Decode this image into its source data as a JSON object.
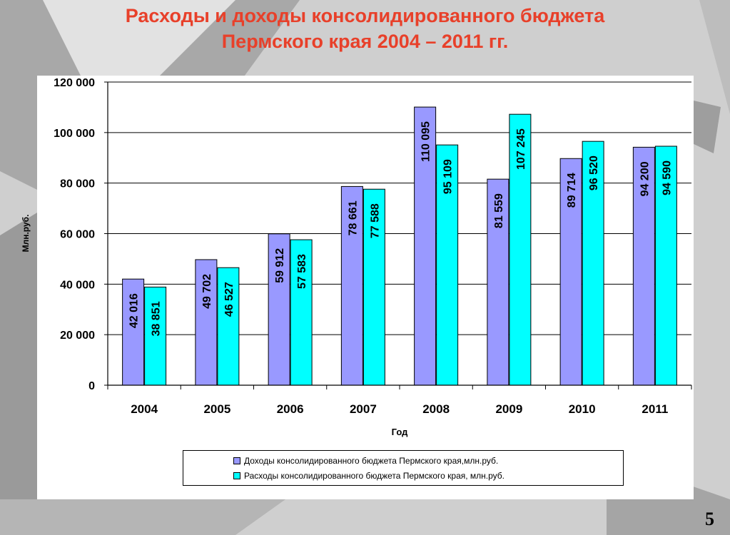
{
  "slide": {
    "title_line1": "Расходы и доходы консолидированного бюджета",
    "title_line2": "Пермского края  2004 – 2011 гг.",
    "page_number": "5",
    "title_color": "#e8402a"
  },
  "chart_data": {
    "type": "bar",
    "categories": [
      "2004",
      "2005",
      "2006",
      "2007",
      "2008",
      "2009",
      "2010",
      "2011"
    ],
    "series": [
      {
        "name": "Доходы консолидированного бюджета Пермского края,млн.руб.",
        "values": [
          42016,
          49702,
          59912,
          78661,
          110095,
          81559,
          89714,
          94200
        ],
        "labels": [
          "42 016",
          "49 702",
          "59 912",
          "78 661",
          "110 095",
          "81 559",
          "89 714",
          "94 200"
        ],
        "color": "#9999ff"
      },
      {
        "name": "Расходы консолидированного бюджета Пермского края, млн.руб.",
        "values": [
          38851,
          46527,
          57583,
          77588,
          95109,
          107245,
          96520,
          94590
        ],
        "labels": [
          "38 851",
          "46 527",
          "57 583",
          "77 588",
          "95 109",
          "107 245",
          "96 520",
          "94 590"
        ],
        "color": "#00ffff"
      }
    ],
    "xlabel": "Год",
    "ylabel": "Млн.руб.",
    "ylim": [
      0,
      120000
    ],
    "yticks": [
      0,
      20000,
      40000,
      60000,
      80000,
      100000,
      120000
    ],
    "ytick_labels": [
      "0",
      "20 000",
      "40 000",
      "60 000",
      "80 000",
      "100 000",
      "120 000"
    ],
    "grid": true,
    "legend_position": "bottom"
  }
}
